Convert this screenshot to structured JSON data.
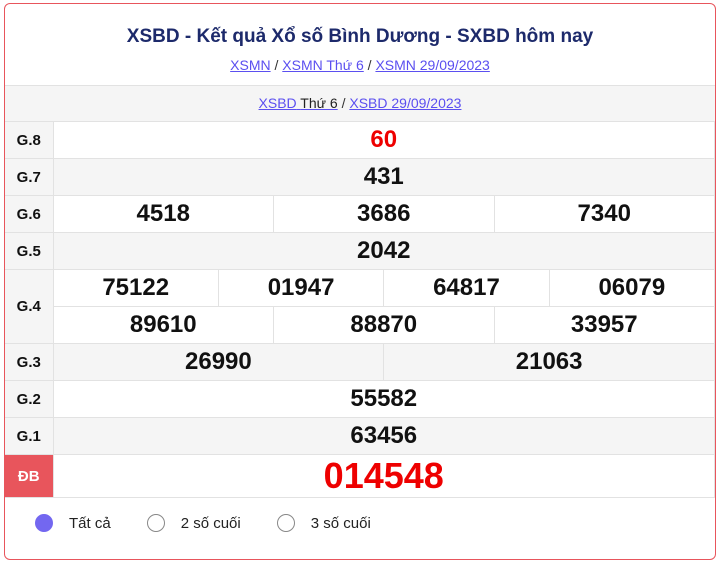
{
  "title": "XSBD - Kết quả Xổ số Bình Dương - SXBD hôm nay",
  "breadcrumb": [
    "XSMN",
    "XSMN Thứ 6",
    "XSMN 29/09/2023"
  ],
  "subnav": {
    "link1": "XSBD",
    "link1_rest": "Thứ 6",
    "link2": "XSBD 29/09/2023"
  },
  "prizes": {
    "g8": {
      "label": "G.8",
      "values": [
        "60"
      ]
    },
    "g7": {
      "label": "G.7",
      "values": [
        "431"
      ]
    },
    "g6": {
      "label": "G.6",
      "values": [
        "4518",
        "3686",
        "7340"
      ]
    },
    "g5": {
      "label": "G.5",
      "values": [
        "2042"
      ]
    },
    "g4": {
      "label": "G.4",
      "values": [
        "75122",
        "01947",
        "64817",
        "06079",
        "89610",
        "88870",
        "33957"
      ]
    },
    "g3": {
      "label": "G.3",
      "values": [
        "26990",
        "21063"
      ]
    },
    "g2": {
      "label": "G.2",
      "values": [
        "55582"
      ]
    },
    "g1": {
      "label": "G.1",
      "values": [
        "63456"
      ]
    },
    "db": {
      "label": "ĐB",
      "values": [
        "014548"
      ]
    }
  },
  "filters": [
    {
      "label": "Tất cả",
      "selected": true
    },
    {
      "label": "2 số cuối",
      "selected": false
    },
    {
      "label": "3 số cuối",
      "selected": false
    }
  ],
  "colors": {
    "accent": "#e8555c",
    "link": "#5b4ff0",
    "highlight": "#e00000",
    "radio": "#7367f0"
  }
}
